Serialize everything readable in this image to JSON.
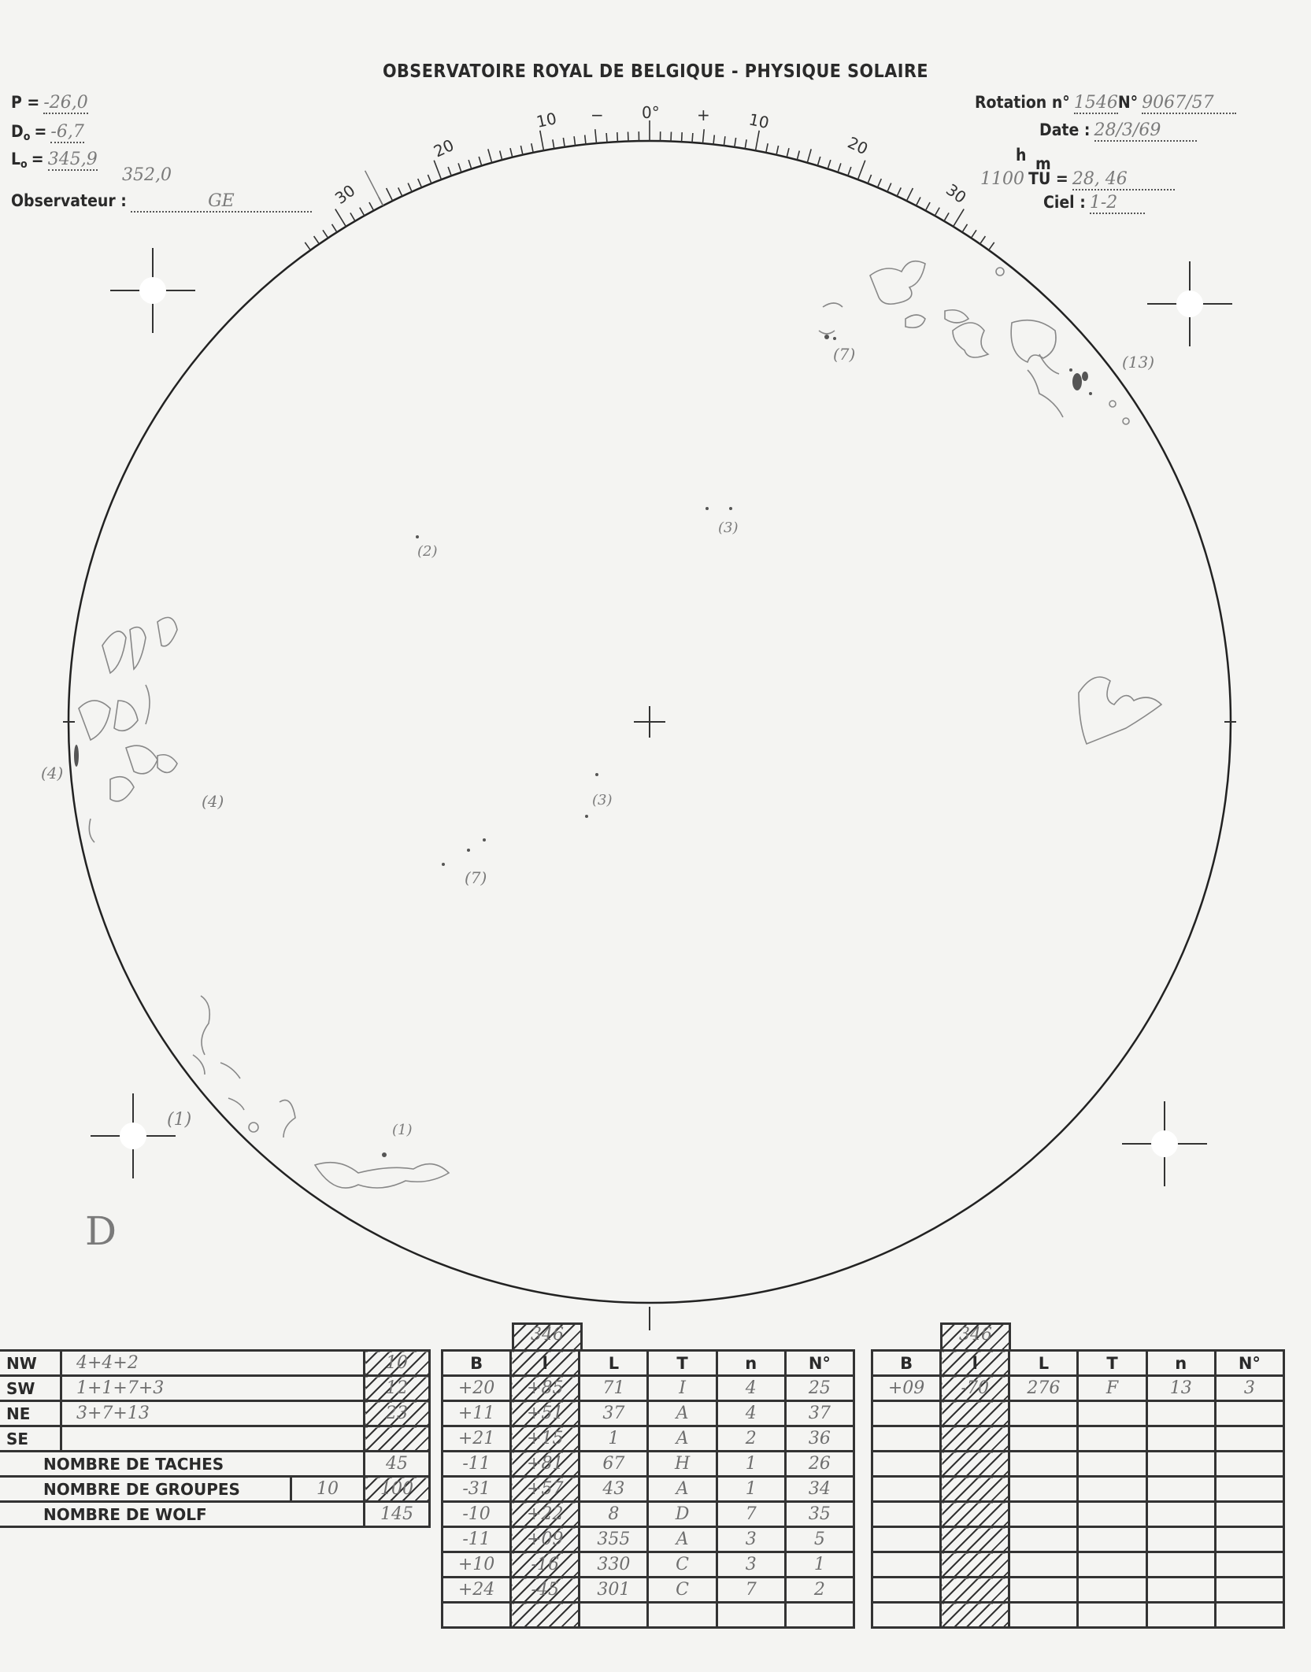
{
  "header": {
    "title": "OBSERVATOIRE ROYAL DE BELGIQUE - PHYSIQUE SOLAIRE",
    "P_label": "P =",
    "P_value": "-26,0",
    "D0_label": "D",
    "D0_sub": "o",
    "D0_eq": "=",
    "D0_value": "-6,7",
    "L0_label": "L",
    "L0_sub": "o",
    "L0_eq": "=",
    "L0_value": "345,9",
    "L0_note": "352,0",
    "observer_label": "Observateur :",
    "observer_value": "GE",
    "rotation_label": "Rotation n°",
    "rotation_value": "1546",
    "number_label": "N°",
    "number_value": "9067/57",
    "date_label": "Date :",
    "date_value": "28/3/69",
    "h_label": "h",
    "m_label": "m",
    "time_note": "1100",
    "tu_label": "TU =",
    "tu_value": "28, 46",
    "sky_label": "Ciel :",
    "sky_value": "1-2"
  },
  "scale": {
    "left_labels": [
      "30",
      "20",
      "10",
      "−"
    ],
    "center_label": "0°",
    "right_labels": [
      "+",
      "10",
      "20",
      "30"
    ]
  },
  "disk_annotations": {
    "g2": "(2)",
    "g3a": "(3)",
    "g13": "(13)",
    "g7a": "(7)",
    "g4a": "(4)",
    "g4b": "(4)",
    "g3b": "(3)",
    "g7b": "(7)",
    "g1a": "(1)",
    "g1b": "(1)",
    "corner": "D"
  },
  "quadrants": [
    {
      "label": "NW",
      "sum": "4+4+2",
      "total": "10"
    },
    {
      "label": "SW",
      "sum": "1+1+7+3",
      "total": "12"
    },
    {
      "label": "NE",
      "sum": "3+7+13",
      "total": "23"
    },
    {
      "label": "SE",
      "sum": "",
      "total": ""
    }
  ],
  "summary": {
    "spots_label": "NOMBRE DE TACHES",
    "spots_value": "45",
    "groups_label": "NOMBRE DE GROUPES",
    "groups_note": "10",
    "groups_value": "100",
    "wolf_label": "NOMBRE DE WOLF",
    "wolf_value": "145"
  },
  "groups_table_1": {
    "l_top": "346",
    "columns": [
      "B",
      "l",
      "L",
      "T",
      "n",
      "N°"
    ],
    "rows": [
      [
        "+20",
        "+85",
        "71",
        "I",
        "4",
        "25"
      ],
      [
        "+11",
        "+51",
        "37",
        "A",
        "4",
        "37"
      ],
      [
        "+21",
        "+15",
        "1",
        "A",
        "2",
        "36"
      ],
      [
        "-11",
        "+81",
        "67",
        "H",
        "1",
        "26"
      ],
      [
        "-31",
        "+57",
        "43",
        "A",
        "1",
        "34"
      ],
      [
        "-10",
        "+22",
        "8",
        "D",
        "7",
        "35"
      ],
      [
        "-11",
        "+09",
        "355",
        "A",
        "3",
        "5"
      ],
      [
        "+10",
        "-16",
        "330",
        "C",
        "3",
        "1"
      ],
      [
        "+24",
        "-45",
        "301",
        "C",
        "7",
        "2"
      ],
      [
        "",
        "",
        "",
        "",
        "",
        ""
      ]
    ]
  },
  "groups_table_2": {
    "l_top": "346",
    "columns": [
      "B",
      "l",
      "L",
      "T",
      "n",
      "N°"
    ],
    "rows": [
      [
        "+09",
        "-70",
        "276",
        "F",
        "13",
        "3"
      ],
      [
        "",
        "",
        "",
        "",
        "",
        ""
      ],
      [
        "",
        "",
        "",
        "",
        "",
        ""
      ],
      [
        "",
        "",
        "",
        "",
        "",
        ""
      ],
      [
        "",
        "",
        "",
        "",
        "",
        ""
      ],
      [
        "",
        "",
        "",
        "",
        "",
        ""
      ],
      [
        "",
        "",
        "",
        "",
        "",
        ""
      ],
      [
        "",
        "",
        "",
        "",
        "",
        ""
      ],
      [
        "",
        "",
        "",
        "",
        "",
        ""
      ],
      [
        "",
        "",
        "",
        "",
        "",
        ""
      ]
    ]
  },
  "colors": {
    "ink": "#2a2a2a",
    "pencil": "#7a7a7a",
    "paper": "#f4f4f2"
  }
}
